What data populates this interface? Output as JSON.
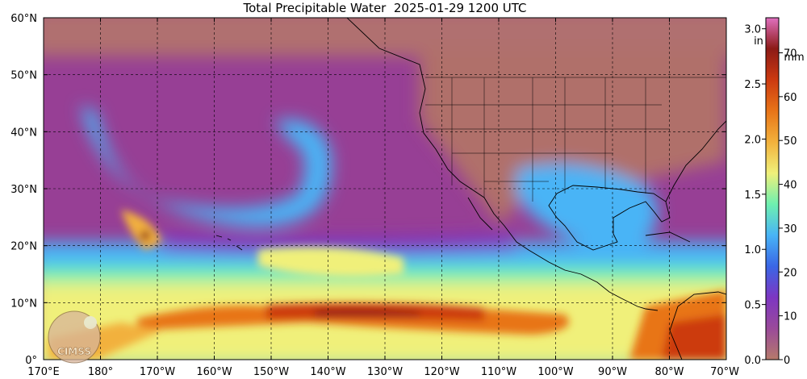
{
  "title": "Total Precipitable Water  2025-01-29 1200 UTC",
  "map": {
    "lon_range": [
      170,
      290
    ],
    "lat_range": [
      0,
      60
    ],
    "lon_ticks": [
      {
        "value": 170,
        "label": "170°E"
      },
      {
        "value": 180,
        "label": "180°"
      },
      {
        "value": 190,
        "label": "170°W"
      },
      {
        "value": 200,
        "label": "160°W"
      },
      {
        "value": 210,
        "label": "150°W"
      },
      {
        "value": 220,
        "label": "140°W"
      },
      {
        "value": 230,
        "label": "130°W"
      },
      {
        "value": 240,
        "label": "120°W"
      },
      {
        "value": 250,
        "label": "110°W"
      },
      {
        "value": 260,
        "label": "100°W"
      },
      {
        "value": 270,
        "label": "90°W"
      },
      {
        "value": 280,
        "label": "80°W"
      },
      {
        "value": 290,
        "label": "70°W"
      }
    ],
    "lat_ticks": [
      {
        "value": 0,
        "label": "0°"
      },
      {
        "value": 10,
        "label": "10°N"
      },
      {
        "value": 20,
        "label": "20°N"
      },
      {
        "value": 30,
        "label": "30°N"
      },
      {
        "value": 40,
        "label": "40°N"
      },
      {
        "value": 50,
        "label": "50°N"
      },
      {
        "value": 60,
        "label": "60°N"
      }
    ],
    "grid": true,
    "grid_style": "dashed"
  },
  "colorbar": {
    "range_mm": [
      0,
      78
    ],
    "range_in": [
      0,
      3.1
    ],
    "unit_in": "in",
    "unit_mm": "mm",
    "ticks_in": [
      "0.0",
      "0.5",
      "1.0",
      "1.5",
      "2.0",
      "2.5",
      "3.0"
    ],
    "ticks_in_values": [
      0,
      0.5,
      1.0,
      1.5,
      2.0,
      2.5,
      3.0
    ],
    "ticks_mm": [
      "0",
      "10",
      "20",
      "30",
      "40",
      "50",
      "60",
      "70"
    ],
    "ticks_mm_values": [
      0,
      10,
      20,
      30,
      40,
      50,
      60,
      70
    ],
    "colors": [
      "#b57a6a",
      "#9a4a9a",
      "#7d36c2",
      "#3a66e6",
      "#48b4f6",
      "#6ef0b0",
      "#f0f07a",
      "#f2b13c",
      "#e87418",
      "#cc3a10",
      "#8c1a16",
      "#e070c0"
    ]
  },
  "logo": {
    "text": "CIMSS"
  }
}
